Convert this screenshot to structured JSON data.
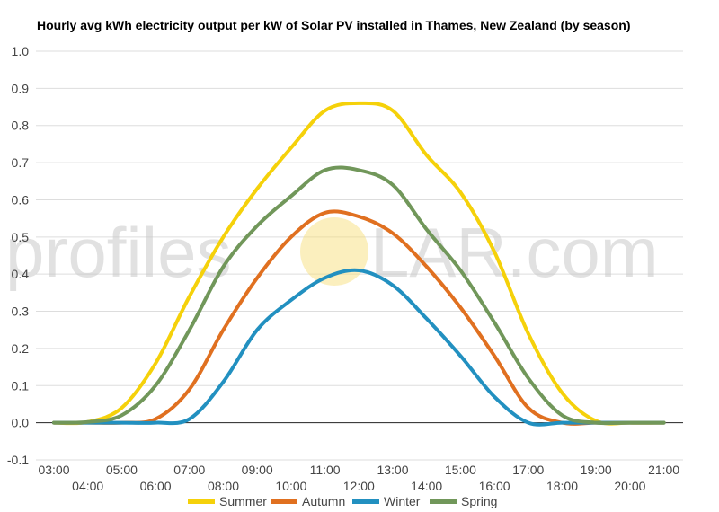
{
  "chart_data": {
    "type": "line",
    "title": "Hourly avg kWh electricity output per kW of Solar PV installed in Thames, New Zealand (by season)",
    "watermark": {
      "left": "profiles",
      "right": "LAR.com",
      "sun_color": "#f7dc6f"
    },
    "xlabel": "",
    "ylabel": "",
    "ylim": [
      -0.1,
      1.0
    ],
    "yticks": [
      "-0.1",
      "0.0",
      "0.1",
      "0.2",
      "0.3",
      "0.4",
      "0.5",
      "0.6",
      "0.7",
      "0.8",
      "0.9",
      "1.0"
    ],
    "x": [
      "03:00",
      "04:00",
      "05:00",
      "06:00",
      "07:00",
      "08:00",
      "09:00",
      "10:00",
      "11:00",
      "12:00",
      "13:00",
      "14:00",
      "15:00",
      "16:00",
      "17:00",
      "18:00",
      "19:00",
      "20:00",
      "21:00"
    ],
    "grid": true,
    "legend_position": "bottom",
    "series": [
      {
        "name": "Summer",
        "color": "#f5d10a",
        "values": [
          0,
          0.002,
          0.04,
          0.16,
          0.34,
          0.5,
          0.63,
          0.74,
          0.84,
          0.86,
          0.84,
          0.72,
          0.62,
          0.46,
          0.24,
          0.08,
          0.005,
          0,
          0
        ]
      },
      {
        "name": "Autumn",
        "color": "#e07020",
        "values": [
          0,
          0,
          0,
          0.01,
          0.09,
          0.25,
          0.39,
          0.5,
          0.565,
          0.555,
          0.51,
          0.42,
          0.31,
          0.18,
          0.04,
          0,
          0,
          0,
          0
        ]
      },
      {
        "name": "Winter",
        "color": "#2290c0",
        "values": [
          0,
          0,
          0,
          0,
          0.01,
          0.11,
          0.25,
          0.33,
          0.39,
          0.41,
          0.37,
          0.28,
          0.18,
          0.07,
          0,
          0,
          0,
          0,
          0
        ]
      },
      {
        "name": "Spring",
        "color": "#71975a",
        "values": [
          0,
          0.002,
          0.02,
          0.1,
          0.25,
          0.42,
          0.53,
          0.61,
          0.68,
          0.68,
          0.64,
          0.52,
          0.41,
          0.27,
          0.12,
          0.02,
          0,
          0,
          0
        ]
      }
    ]
  }
}
